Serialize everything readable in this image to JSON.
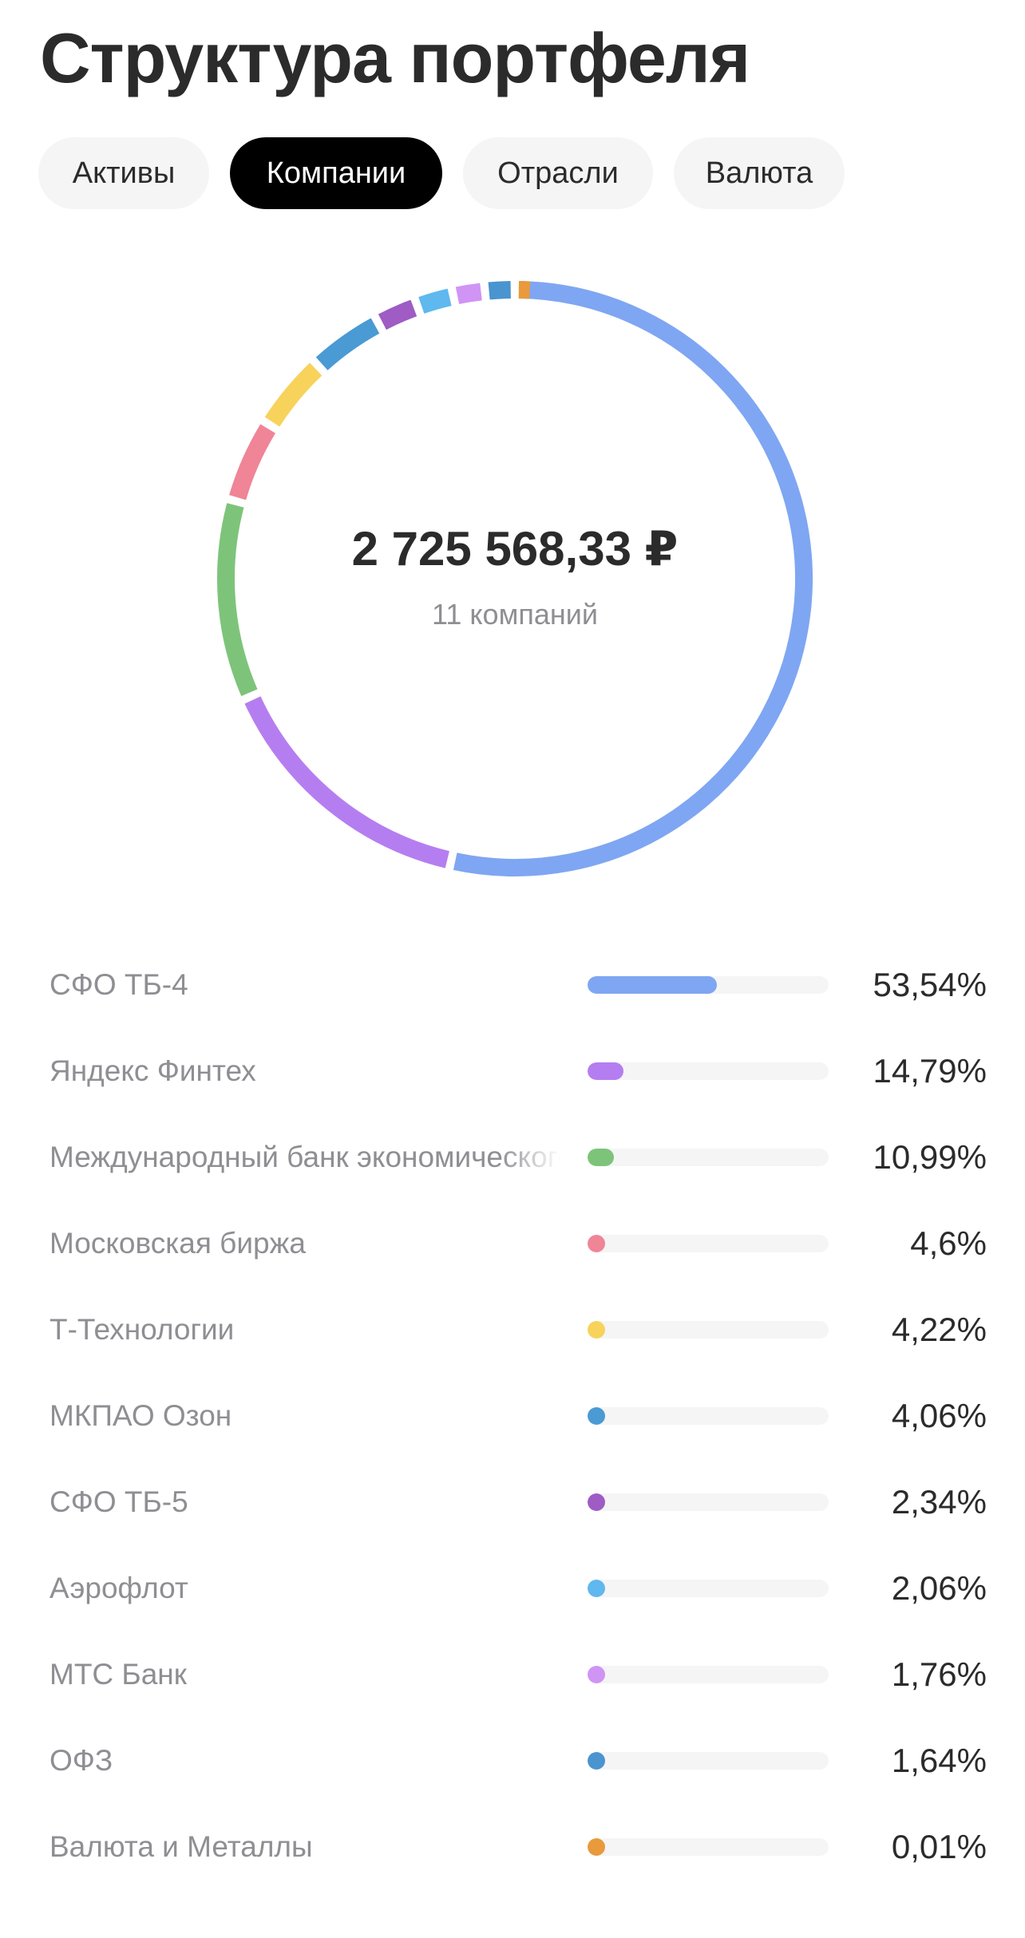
{
  "header": {
    "title": "Структура портфеля"
  },
  "tabs": [
    {
      "label": "Активы",
      "active": false
    },
    {
      "label": "Компании",
      "active": true
    },
    {
      "label": "Отрасли",
      "active": false
    },
    {
      "label": "Валюта",
      "active": false
    }
  ],
  "summary": {
    "total": "2 725 568,33 ₽",
    "count_label": "11 компаний"
  },
  "chart_data": {
    "type": "pie",
    "categories": [
      "СФО ТБ-4",
      "Яндекс Финтех",
      "Международный банк экономического сотрудничества",
      "Московская биржа",
      "Т-Технологии",
      "МКПАО Озон",
      "СФО ТБ-5",
      "Аэрофлот",
      "МТС Банк",
      "ОФЗ",
      "Валюта и Металлы"
    ],
    "values": [
      53.54,
      14.79,
      10.99,
      4.6,
      4.22,
      4.06,
      2.34,
      2.06,
      1.76,
      1.64,
      0.01
    ],
    "colors": [
      "#7fa6f2",
      "#b57ef0",
      "#7dc47a",
      "#ef8597",
      "#f7d35c",
      "#4a9ad4",
      "#9e5cc4",
      "#5fb8ee",
      "#cf94f4",
      "#4a94d0",
      "#e89a3c"
    ]
  },
  "holdings": [
    {
      "name": "СФО ТБ-4",
      "percent_label": "53,54%",
      "share": 53.54,
      "color": "#7fa6f2"
    },
    {
      "name": "Яндекс Финтех",
      "percent_label": "14,79%",
      "share": 14.79,
      "color": "#b57ef0"
    },
    {
      "name": "Международный банк экономического сотрудничества",
      "percent_label": "10,99%",
      "share": 10.99,
      "color": "#7dc47a"
    },
    {
      "name": "Московская биржа",
      "percent_label": "4,6%",
      "share": 4.6,
      "color": "#ef8597"
    },
    {
      "name": "Т-Технологии",
      "percent_label": "4,22%",
      "share": 4.22,
      "color": "#f7d35c"
    },
    {
      "name": "МКПАО Озон",
      "percent_label": "4,06%",
      "share": 4.06,
      "color": "#4a9ad4"
    },
    {
      "name": "СФО ТБ-5",
      "percent_label": "2,34%",
      "share": 2.34,
      "color": "#9e5cc4"
    },
    {
      "name": "Аэрофлот",
      "percent_label": "2,06%",
      "share": 2.06,
      "color": "#5fb8ee"
    },
    {
      "name": "МТС Банк",
      "percent_label": "1,76%",
      "share": 1.76,
      "color": "#cf94f4"
    },
    {
      "name": "ОФЗ",
      "percent_label": "1,64%",
      "share": 1.64,
      "color": "#4a94d0"
    },
    {
      "name": "Валюта и Металлы",
      "percent_label": "0,01%",
      "share": 0.01,
      "color": "#e89a3c"
    }
  ]
}
